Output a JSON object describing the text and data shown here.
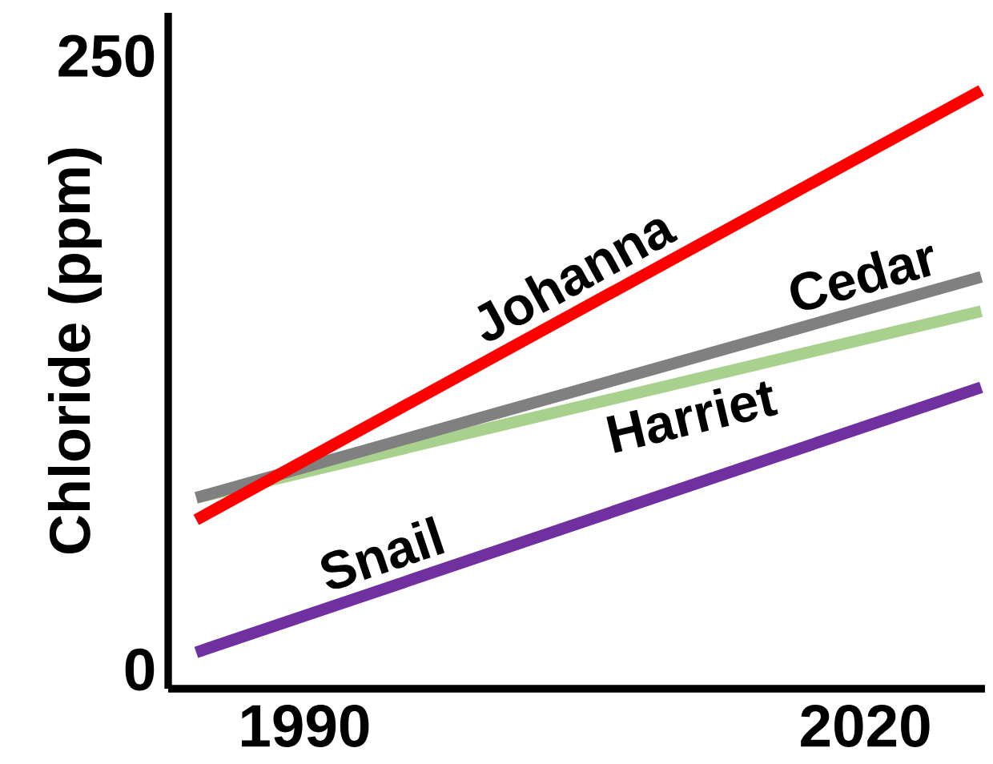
{
  "chart_data": {
    "type": "line",
    "ylabel": "Chloride (ppm)",
    "x": [
      1984.2,
      2026.2
    ],
    "xlim": [
      1982.7,
      2026.4
    ],
    "ylim": [
      -7.8,
      267.6
    ],
    "xticks": [
      1990,
      2020
    ],
    "yticks": [
      0,
      250
    ],
    "line_style": "solid",
    "series": [
      {
        "name": "Snail",
        "color": "#7030a0",
        "values": [
          7,
          115
        ]
      },
      {
        "name": "Harriet",
        "color": "#a9d18e",
        "values": [
          70,
          146
        ]
      },
      {
        "name": "Cedar",
        "color": "#808080",
        "values": [
          70,
          160
        ]
      },
      {
        "name": "Johanna",
        "color": "#ff0000",
        "values": [
          61,
          236
        ]
      }
    ]
  }
}
